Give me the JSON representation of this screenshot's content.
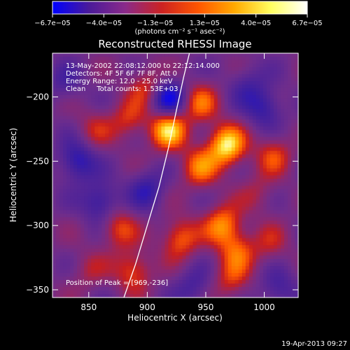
{
  "chart_data": {
    "type": "heatmap",
    "title": "Reconstructed RHESSI Image",
    "xlabel": "Heliocentric X (arcsec)",
    "ylabel": "Heliocentric Y (arcsec)",
    "xlim": [
      819,
      1029
    ],
    "ylim": [
      -356,
      -166
    ],
    "x_ticks": [
      850,
      900,
      950,
      1000
    ],
    "x_tick_labels": [
      "850",
      "900",
      "950",
      "1000"
    ],
    "y_ticks": [
      -200,
      -250,
      -300,
      -350
    ],
    "y_tick_labels": [
      "−200",
      "−250",
      "−300",
      "−350"
    ],
    "colorbar": {
      "ticks": [
        -6.7e-05,
        -4e-05,
        -1.3e-05,
        1.3e-05,
        4e-05,
        6.7e-05
      ],
      "tick_labels": [
        "−6.7e−05",
        "−4.0e−05",
        "−1.3e−05",
        "1.3e−05",
        "4.0e−05",
        "6.7e−05"
      ],
      "units": "(photons cm⁻² s⁻¹ asec⁻²)",
      "colors": [
        "#0000ff",
        "#4a1a9a",
        "#8a2a8a",
        "#cc2222",
        "#ff5500",
        "#ffaa00",
        "#ffff60",
        "#ffffff"
      ]
    },
    "annotations": [
      "13-May-2002 22:08:12.000 to 22:12:14.000",
      "Detectors: 4F 5F 6F 7F 8F, Att 0",
      "Energy Range: 12.0 - 25.0 keV",
      "Clean     Total counts: 1.53E+03"
    ],
    "peak_label": "Position of Peak = [969,-236]",
    "peak": [
      969,
      -236
    ],
    "limb_curve": [
      [
        880,
        -356
      ],
      [
        890,
        -330
      ],
      [
        900,
        -300
      ],
      [
        910,
        -270
      ],
      [
        918,
        -240
      ],
      [
        925,
        -210
      ],
      [
        931,
        -185
      ],
      [
        936,
        -166
      ]
    ],
    "sources": [
      {
        "x": 968,
        "y": -238,
        "amp": 1.0
      },
      {
        "x": 918,
        "y": -225,
        "amp": 0.95
      },
      {
        "x": 945,
        "y": -255,
        "amp": 0.6
      },
      {
        "x": 900,
        "y": -192,
        "amp": 0.45
      },
      {
        "x": 945,
        "y": -205,
        "amp": 0.55
      },
      {
        "x": 1008,
        "y": -245,
        "amp": 0.45
      },
      {
        "x": 884,
        "y": -218,
        "amp": 0.42
      },
      {
        "x": 855,
        "y": -225,
        "amp": 0.3
      },
      {
        "x": 965,
        "y": -300,
        "amp": 0.7
      },
      {
        "x": 928,
        "y": -310,
        "amp": 0.6
      },
      {
        "x": 977,
        "y": -320,
        "amp": 0.5
      },
      {
        "x": 875,
        "y": -302,
        "amp": 0.5
      },
      {
        "x": 888,
        "y": -335,
        "amp": 0.55
      },
      {
        "x": 972,
        "y": -343,
        "amp": 0.4
      },
      {
        "x": 850,
        "y": -335,
        "amp": 0.25
      },
      {
        "x": 1005,
        "y": -315,
        "amp": 0.3
      },
      {
        "x": 995,
        "y": -275,
        "amp": 0.25
      },
      {
        "x": 918,
        "y": -202,
        "amp": -0.8
      },
      {
        "x": 840,
        "y": -250,
        "amp": -0.6
      },
      {
        "x": 860,
        "y": -282,
        "amp": -0.55
      },
      {
        "x": 900,
        "y": -272,
        "amp": -0.45
      },
      {
        "x": 1000,
        "y": -208,
        "amp": -0.5
      },
      {
        "x": 1012,
        "y": -350,
        "amp": -0.4
      },
      {
        "x": 940,
        "y": -348,
        "amp": -0.35
      },
      {
        "x": 985,
        "y": -190,
        "amp": -0.3
      },
      {
        "x": 830,
        "y": -190,
        "amp": -0.3
      }
    ]
  },
  "footer": {
    "timestamp": "19-Apr-2013 09:27"
  }
}
